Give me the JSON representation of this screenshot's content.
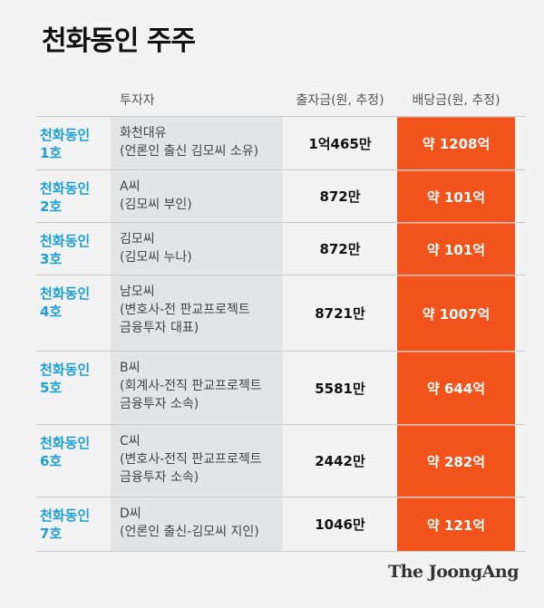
{
  "title": "천화동인 주주",
  "headers": {
    "investor": "투자자",
    "capital": "출자금(원, 추정)",
    "dividend": "배당금(원, 추정)"
  },
  "rows": [
    {
      "label": [
        "천화동인",
        "1호"
      ],
      "investor": [
        "화천대유",
        "(언론인 출신 김모씨 소유)"
      ],
      "capital": "1억465만",
      "dividend": "약 1208억"
    },
    {
      "label": [
        "천화동인",
        "2호"
      ],
      "investor": [
        "A씨",
        "(김모씨 부인)"
      ],
      "capital": "872만",
      "dividend": "약 101억"
    },
    {
      "label": [
        "천화동인",
        "3호"
      ],
      "investor": [
        "김모씨",
        "(김모씨 누나)"
      ],
      "capital": "872만",
      "dividend": "약 101억"
    },
    {
      "label": [
        "천화동인",
        "4호"
      ],
      "investor": [
        "남모씨",
        "(변호사-전 판교프로젝트",
        "금융투자 대표)"
      ],
      "capital": "8721만",
      "dividend": "약 1007억"
    },
    {
      "label": [
        "천화동인",
        "5호"
      ],
      "investor": [
        "B씨",
        "(회계사-전직 판교프로젝트",
        "금융투자 소속)"
      ],
      "capital": "5581만",
      "dividend": "약 644억"
    },
    {
      "label": [
        "천화동인",
        "6호"
      ],
      "investor": [
        "C씨",
        "(변호사-전직 판교프로젝트",
        "금융투자 소속)"
      ],
      "capital": "2442만",
      "dividend": "약 282억"
    },
    {
      "label": [
        "천화동인",
        "7호"
      ],
      "investor": [
        "D씨",
        "(언론인 출신-김모씨 지인)"
      ],
      "capital": "1046만",
      "dividend": "약 121억"
    }
  ],
  "logo": "The JoongAng",
  "colors": {
    "accent_blue": "#1aa0d6",
    "dividend_bg": "#f1531b",
    "investor_bg": "#e2e5e8"
  }
}
